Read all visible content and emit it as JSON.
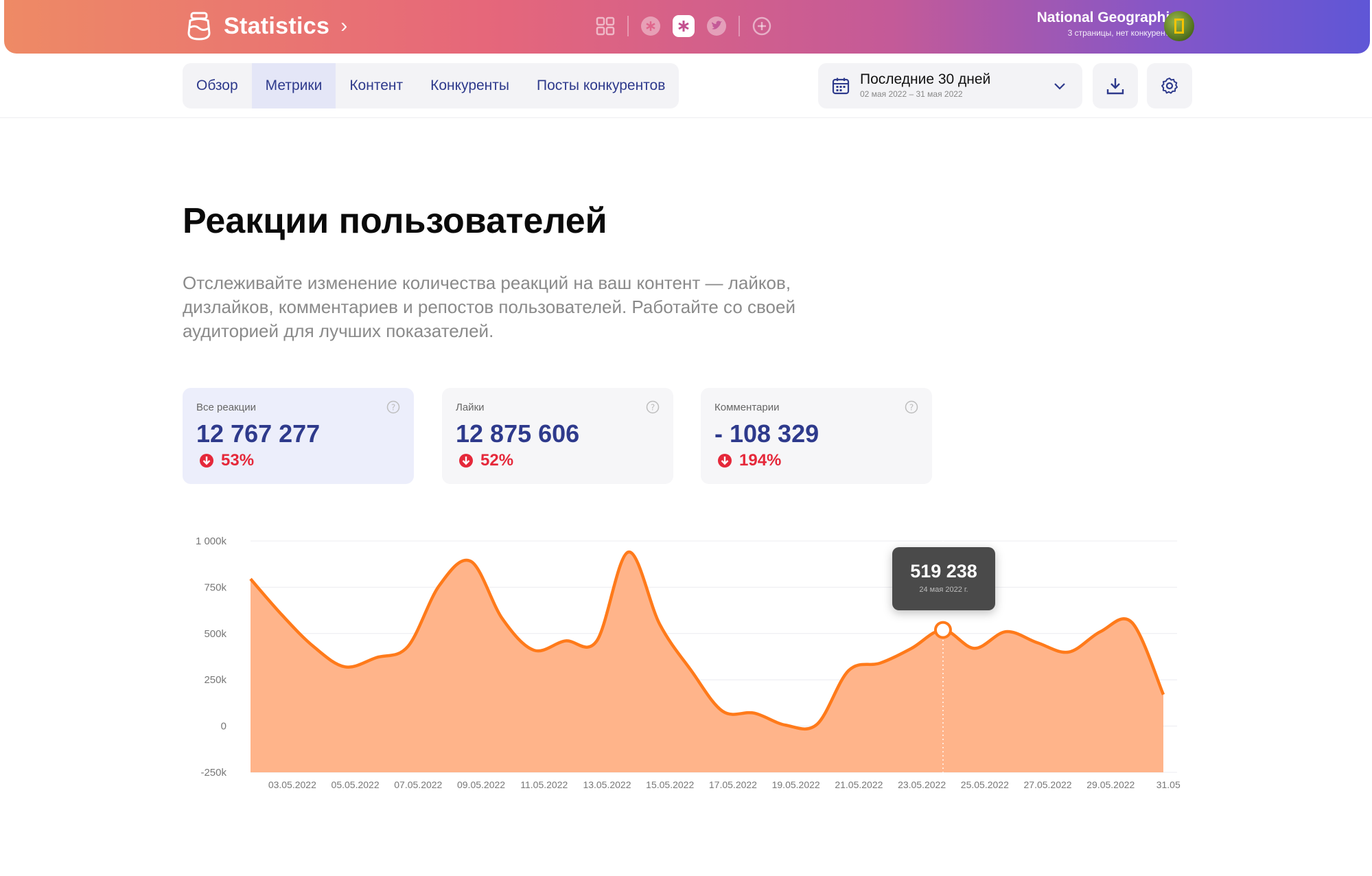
{
  "header": {
    "app_title": "Statistics",
    "account_name": "National Geographic",
    "account_sub": "3 страницы, нет конкурентов",
    "networks": [
      {
        "name": "grid-icon",
        "active": false
      },
      {
        "name": "snowflake-icon",
        "active": false
      },
      {
        "name": "snowflake-icon",
        "active": true
      },
      {
        "name": "twitter-icon",
        "active": false
      },
      {
        "name": "plus-circle-icon",
        "active": false
      }
    ]
  },
  "nav": {
    "tabs": [
      "Обзор",
      "Метрики",
      "Контент",
      "Конкуренты",
      "Посты конкурентов"
    ],
    "active_tab": "Метрики"
  },
  "period": {
    "label": "Последние 30 дней",
    "range": "02 мая 2022 – 31 мая 2022"
  },
  "page": {
    "title": "Реакции пользователей",
    "description": "Отслеживайте изменение количества реакций на ваш контент — лайков, дизлайков, комментариев и репостов пользователей. Работайте со своей аудиторией для лучших показателей."
  },
  "cards": [
    {
      "label": "Все реакции",
      "value": "12 767 277",
      "delta": "53%",
      "direction": "down",
      "active": true
    },
    {
      "label": "Лайки",
      "value": "12 875 606",
      "delta": "52%",
      "direction": "down",
      "active": false
    },
    {
      "label": "Комментарии",
      "value": "- 108 329",
      "delta": "194%",
      "direction": "down",
      "active": false
    }
  ],
  "colors": {
    "accent": "#2e3a8c",
    "negative": "#e5283a",
    "line": "#ff7a1a",
    "area": "#ffb48a"
  },
  "tooltip": {
    "value": "519 238",
    "date": "24 мая 2022 г."
  },
  "chart_data": {
    "type": "area",
    "x": [
      "02.05.2022",
      "03.05.2022",
      "04.05.2022",
      "05.05.2022",
      "06.05.2022",
      "07.05.2022",
      "08.05.2022",
      "09.05.2022",
      "10.05.2022",
      "11.05.2022",
      "12.05.2022",
      "13.05.2022",
      "14.05.2022",
      "15.05.2022",
      "16.05.2022",
      "17.05.2022",
      "18.05.2022",
      "19.05.2022",
      "20.05.2022",
      "21.05.2022",
      "22.05.2022",
      "23.05.2022",
      "24.05.2022",
      "25.05.2022",
      "26.05.2022",
      "27.05.2022",
      "28.05.2022",
      "29.05.2022",
      "30.05.2022",
      "31.05.2022"
    ],
    "values": [
      795000,
      600000,
      430000,
      320000,
      370000,
      430000,
      760000,
      890000,
      580000,
      410000,
      460000,
      460000,
      940000,
      550000,
      300000,
      80000,
      70000,
      5000,
      10000,
      300000,
      340000,
      420000,
      519238,
      420000,
      510000,
      450000,
      400000,
      510000,
      560000,
      170000
    ],
    "tick_labels": [
      "03.05.2022",
      "05.05.2022",
      "07.05.2022",
      "09.05.2022",
      "11.05.2022",
      "13.05.2022",
      "15.05.2022",
      "17.05.2022",
      "19.05.2022",
      "21.05.2022",
      "23.05.2022",
      "25.05.2022",
      "27.05.2022",
      "29.05.2022",
      "31.05...."
    ],
    "y_ticks": [
      "1 000k",
      "750k",
      "500k",
      "250k",
      "0",
      "-250k"
    ],
    "y_tick_values": [
      1000000,
      750000,
      500000,
      250000,
      0,
      -250000
    ],
    "ylim": [
      -250000,
      1000000
    ],
    "grid": true,
    "highlight_x": "24.05.2022",
    "title": "",
    "xlabel": "",
    "ylabel": ""
  }
}
